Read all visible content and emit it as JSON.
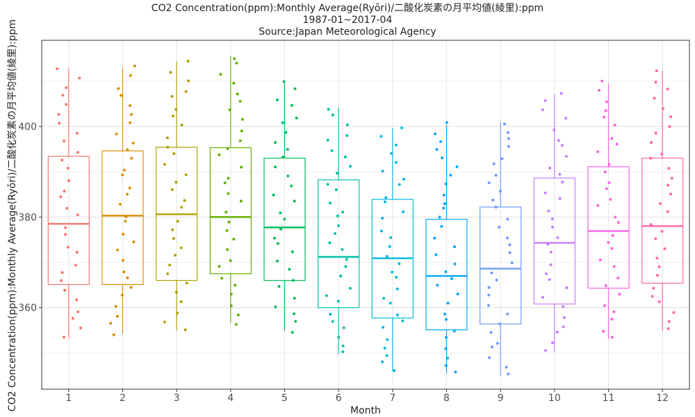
{
  "chart_data": {
    "type": "box",
    "title": "CO2 Concentration(ppm):Monthly Average(Ryōri)/二酸化炭素の月平均値(綾里):ppm",
    "subtitle": "1987-01~2017-04",
    "source": "Source:Japan Meteorological Agency",
    "xlabel": "Month",
    "ylabel": "CO2 Concentration(ppm):Monthly Average(Ryōri)/二酸化炭素の月平均値(綾里):ppm",
    "categories": [
      "1",
      "2",
      "3",
      "4",
      "5",
      "6",
      "7",
      "8",
      "9",
      "10",
      "11",
      "12"
    ],
    "ylim": [
      342,
      419
    ],
    "y_ticks": [
      360,
      380,
      400
    ],
    "grid": true,
    "legend": "none",
    "colors": [
      "#F8766D",
      "#DB8E00",
      "#AEA200",
      "#64B200",
      "#00BD5C",
      "#00C1A7",
      "#00BADE",
      "#00A6FF",
      "#6F9BF8",
      "#C77CFF",
      "#F564E3",
      "#FF66A8"
    ],
    "boxes": [
      {
        "month": "1",
        "min": 353.3,
        "q1": 365.1,
        "median": 378.5,
        "q3": 393.4,
        "max": 412.8
      },
      {
        "month": "2",
        "min": 354.3,
        "q1": 365.1,
        "median": 380.3,
        "q3": 394.6,
        "max": 413.0
      },
      {
        "month": "3",
        "min": 355.0,
        "q1": 366.0,
        "median": 380.6,
        "q3": 395.4,
        "max": 414.3
      },
      {
        "month": "4",
        "min": 356.6,
        "q1": 367.5,
        "median": 380.0,
        "q3": 395.3,
        "max": 415.5
      },
      {
        "month": "5",
        "min": 354.8,
        "q1": 366.0,
        "median": 377.7,
        "q3": 393.0,
        "max": 410.0
      },
      {
        "month": "6",
        "min": 349.7,
        "q1": 360.0,
        "median": 371.2,
        "q3": 388.2,
        "max": 404.2
      },
      {
        "month": "7",
        "min": 346.0,
        "q1": 357.7,
        "median": 370.9,
        "q3": 383.9,
        "max": 399.6
      },
      {
        "month": "8",
        "min": 345.5,
        "q1": 355.1,
        "median": 367.0,
        "q3": 379.5,
        "max": 400.3
      },
      {
        "month": "9",
        "min": 345.0,
        "q1": 356.4,
        "median": 368.6,
        "q3": 382.2,
        "max": 401.0
      },
      {
        "month": "10",
        "min": 350.2,
        "q1": 360.8,
        "median": 374.3,
        "q3": 388.6,
        "max": 407.1
      },
      {
        "month": "11",
        "min": 353.0,
        "q1": 364.3,
        "median": 376.9,
        "q3": 391.1,
        "max": 409.5
      },
      {
        "month": "12",
        "min": 354.9,
        "q1": 365.4,
        "median": 378.0,
        "q3": 393.0,
        "max": 412.3
      }
    ],
    "points_per_month": 30
  }
}
